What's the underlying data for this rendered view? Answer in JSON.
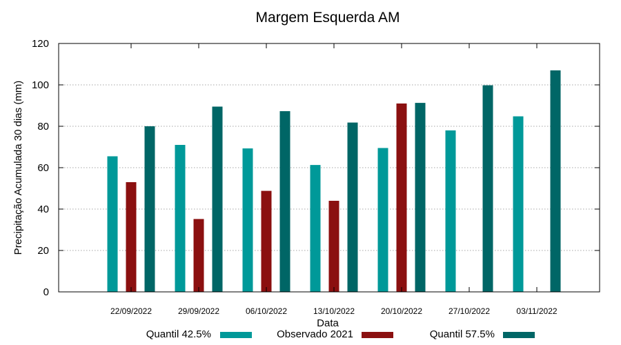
{
  "chart_data": {
    "type": "bar",
    "title": "Margem Esquerda AM",
    "xlabel": "Data",
    "ylabel": "Precipitação Acumulada 30 dias (mm)",
    "ylim": [
      0,
      120
    ],
    "yticks": [
      0,
      20,
      40,
      60,
      80,
      100,
      120
    ],
    "grid": "horizontal dotted",
    "legend_position": "bottom",
    "categories": [
      "22/09/2022",
      "29/09/2022",
      "06/10/2022",
      "13/10/2022",
      "20/10/2022",
      "27/10/2022",
      "03/11/2022"
    ],
    "series": [
      {
        "name": "Quantil 42.5%",
        "color": "#009999",
        "values": [
          65.5,
          71,
          69.3,
          61.3,
          69.5,
          78,
          84.8
        ]
      },
      {
        "name": "Observado 2021",
        "color": "#8b1010",
        "values": [
          53,
          35.2,
          48.8,
          44,
          91,
          null,
          null
        ]
      },
      {
        "name": "Quantil 57.5%",
        "color": "#006666",
        "values": [
          80,
          89.5,
          87.3,
          81.8,
          91.3,
          99.8,
          107
        ]
      }
    ]
  }
}
